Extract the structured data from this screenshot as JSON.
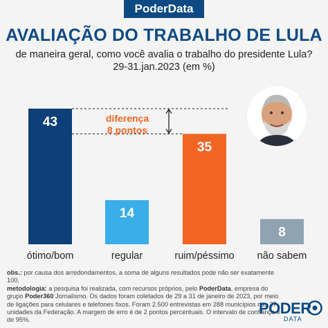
{
  "brand_badge": "PoderData",
  "title": "AVALIAÇÃO DO TRABALHO DE LULA",
  "subtitle_lines": [
    "de maneira geral, como você avalia o trabalho do presidente Lula?",
    "29-31.jan.2023 (em %)"
  ],
  "annotation": {
    "line1": "diferença",
    "line2": "8 pontos"
  },
  "chart_data": {
    "type": "bar",
    "title": "AVALIAÇÃO DO TRABALHO DE LULA",
    "categories": [
      "ótimo/bom",
      "regular",
      "ruim/péssimo",
      "não sabem"
    ],
    "values": [
      43,
      14,
      35,
      8
    ],
    "ylim": [
      0,
      43
    ],
    "grid": false,
    "colors": [
      "#0d3f78",
      "#3aaee8",
      "#f26522",
      "#8fa3b0"
    ]
  },
  "notes": {
    "obs_label": "obs.:",
    "obs_text": "por causa dos arredondamentos, a soma de alguns resultados pode não ser exatamente 100.",
    "met_label": "metodologia:",
    "met_text_1": "a pesquisa foi realizada, com recursos próprios, pelo",
    "met_bold_1": "PoderData",
    "met_text_2": ", empresa do grupo",
    "met_bold_2": "Poder360",
    "met_text_3": "Jornalismo. Os dados foram coletados de 29 a 31 de janeiro de 2023, por meio de ligações para celulares e telefones fixos. Foram 2.500 entrevistas em 288 municípios nas 27 unidades da Federação. A margem de erro é de 2 pontos percentuais. O intervalo de confiança é de 95%."
  },
  "logo": {
    "word": "PODER",
    "sub": "DATA"
  }
}
